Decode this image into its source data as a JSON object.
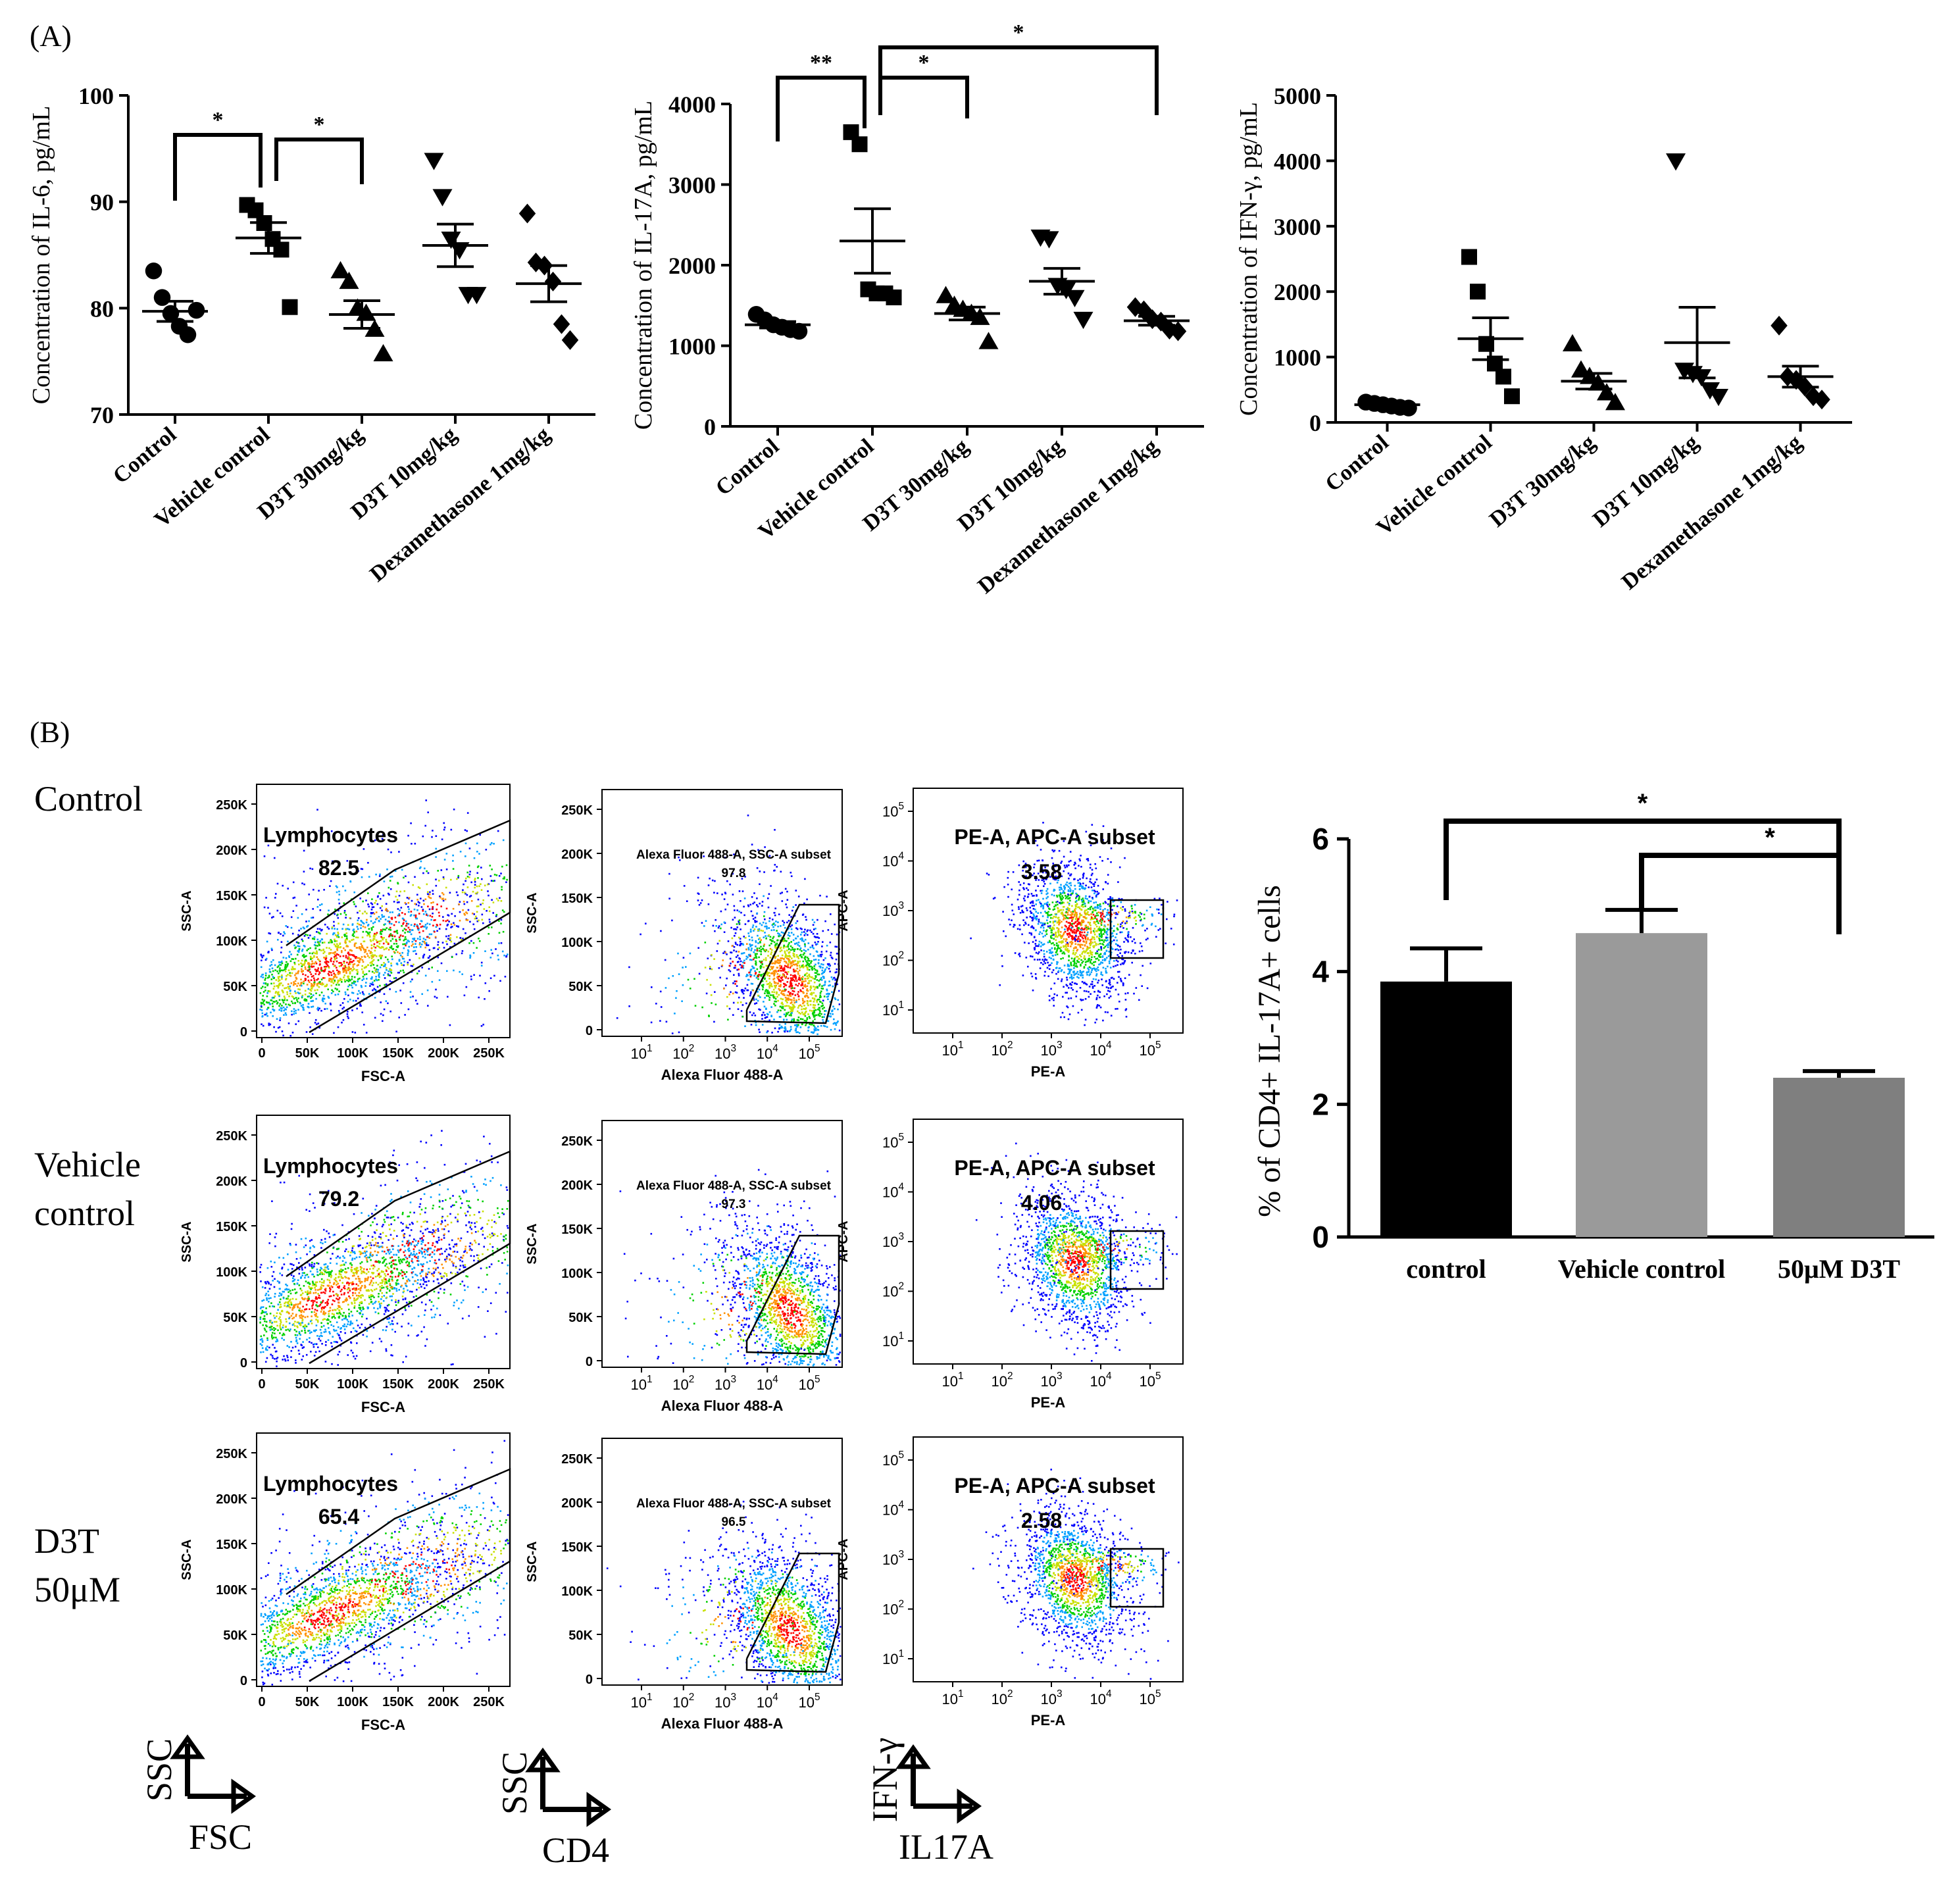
{
  "labels": {
    "panel_a": "(A)",
    "panel_b": "(B)",
    "row_labels": [
      [
        "Control"
      ],
      [
        "Vehicle",
        "control"
      ],
      [
        "D3T",
        "50μM"
      ]
    ],
    "legend": [
      {
        "y": "SSC",
        "x": "FSC"
      },
      {
        "y": "SSC",
        "x": "CD4"
      },
      {
        "y": "IFN-γ",
        "x": "IL17A"
      }
    ]
  },
  "flow": {
    "row_gate_values": [
      {
        "lymph": "82.5",
        "subset": "97.8",
        "pe": "3.58"
      },
      {
        "lymph": "79.2",
        "subset": "97.3",
        "pe": "4.06"
      },
      {
        "lymph": "65.4",
        "subset": "96.5",
        "pe": "2.58"
      }
    ],
    "fsc": {
      "gate_name": "Lymphocytes",
      "xlabel": "FSC-A",
      "ylabel": "SSC-A",
      "xticks": [
        "0",
        "50K",
        "100K",
        "150K",
        "200K",
        "250K"
      ],
      "yticks": [
        "0",
        "50K",
        "100K",
        "150K",
        "200K",
        "250K"
      ]
    },
    "cd4": {
      "gate_name": "Alexa Fluor 488-A, SSC-A subset",
      "xlabel": "Alexa Fluor 488-A",
      "ylabel": "SSC-A",
      "xticks": [
        {
          "b": "10",
          "e": "1"
        },
        {
          "b": "10",
          "e": "2"
        },
        {
          "b": "10",
          "e": "3"
        },
        {
          "b": "10",
          "e": "4"
        },
        {
          "b": "10",
          "e": "5"
        }
      ],
      "yticks": [
        "0",
        "50K",
        "100K",
        "150K",
        "200K",
        "250K"
      ]
    },
    "pe": {
      "gate_name": "PE-A, APC-A subset",
      "xlabel": "PE-A",
      "ylabel": "APC-A",
      "xticks": [
        {
          "b": "10",
          "e": "1"
        },
        {
          "b": "10",
          "e": "2"
        },
        {
          "b": "10",
          "e": "3"
        },
        {
          "b": "10",
          "e": "4"
        },
        {
          "b": "10",
          "e": "5"
        }
      ],
      "yticks": [
        {
          "b": "10",
          "e": "1"
        },
        {
          "b": "10",
          "e": "2"
        },
        {
          "b": "10",
          "e": "3"
        },
        {
          "b": "10",
          "e": "4"
        },
        {
          "b": "10",
          "e": "5"
        }
      ]
    }
  },
  "chart_data": [
    {
      "type": "scatter",
      "ylabel": "Concentration of IL-6, pg/mL",
      "categories": [
        "Control",
        "Vehicle control",
        "D3T 30mg/kg",
        "D3T 10mg/kg",
        "Dexamethasone 1mg/kg"
      ],
      "markers": [
        "circle",
        "square",
        "triangle-up",
        "triangle-down",
        "diamond"
      ],
      "ylim": [
        70,
        100
      ],
      "yticks": [
        70,
        80,
        90,
        100
      ],
      "points": [
        [
          83.5,
          81,
          79.5,
          78.3,
          77.5,
          79.8
        ],
        [
          89.7,
          89.2,
          88,
          86.5,
          85.5,
          80.1
        ],
        [
          83.5,
          82.5,
          80,
          79.5,
          78,
          75.7
        ],
        [
          93.9,
          90.5,
          86.5,
          85.5,
          81.3,
          81.3
        ],
        [
          88.9,
          84.3,
          84,
          82.5,
          78.5,
          77
        ]
      ],
      "mean": [
        79.7,
        86.6,
        79.4,
        85.9,
        82.3
      ],
      "sem": [
        0.95,
        1.45,
        1.3,
        2.0,
        1.7
      ],
      "significance": [
        {
          "from": 0,
          "to": 1,
          "label": "*"
        },
        {
          "from": 1,
          "to": 2,
          "label": "*"
        }
      ]
    },
    {
      "type": "scatter",
      "ylabel": "Concentration of IL-17A, pg/mL",
      "categories": [
        "Control",
        "Vehicle control",
        "D3T 30mg/kg",
        "D3T 10mg/kg",
        "Dexamethasone 1mg/kg"
      ],
      "markers": [
        "circle",
        "square",
        "triangle-up",
        "triangle-down",
        "diamond"
      ],
      "ylim": [
        0,
        4000
      ],
      "yticks": [
        0,
        1000,
        2000,
        3000,
        4000
      ],
      "points": [
        [
          1390,
          1320,
          1260,
          1230,
          1200,
          1180
        ],
        [
          3650,
          3500,
          1700,
          1650,
          1650,
          1600
        ],
        [
          1620,
          1500,
          1450,
          1400,
          1350,
          1050
        ],
        [
          2350,
          2330,
          1750,
          1700,
          1600,
          1330
        ],
        [
          1480,
          1440,
          1330,
          1300,
          1200,
          1180
        ]
      ],
      "mean": [
        1260,
        2300,
        1400,
        1800,
        1310
      ],
      "sem": [
        40,
        400,
        80,
        160,
        55
      ],
      "significance": [
        {
          "from": 0,
          "to": 1,
          "label": "**"
        },
        {
          "from": 1,
          "to": 2,
          "label": "*"
        },
        {
          "from": 1,
          "to": 4,
          "label": "*"
        }
      ]
    },
    {
      "type": "scatter",
      "ylabel": "Concentration of IFN-γ, pg/mL",
      "categories": [
        "Control",
        "Vehicle control",
        "D3T 30mg/kg",
        "D3T 10mg/kg",
        "Dexamethasone 1mg/kg"
      ],
      "markers": [
        "circle",
        "square",
        "triangle-up",
        "triangle-down",
        "diamond"
      ],
      "ylim": [
        0,
        5000
      ],
      "yticks": [
        0,
        1000,
        2000,
        3000,
        4000,
        5000
      ],
      "points": [
        [
          310,
          290,
          270,
          250,
          230,
          220
        ],
        [
          2530,
          2000,
          1200,
          900,
          700,
          400
        ],
        [
          1200,
          800,
          700,
          600,
          450,
          300
        ],
        [
          4000,
          800,
          750,
          700,
          500,
          400
        ],
        [
          1480,
          700,
          650,
          550,
          400,
          350
        ]
      ],
      "mean": [
        270,
        1280,
        630,
        1220,
        700
      ],
      "sem": [
        25,
        320,
        120,
        540,
        160
      ],
      "significance": []
    },
    {
      "type": "bar",
      "ylabel": "% of CD4+ IL-17A+ cells",
      "categories": [
        "control",
        "Vehicle control",
        "50μM D3T"
      ],
      "values": [
        3.85,
        4.58,
        2.4
      ],
      "errors": [
        0.5,
        0.35,
        0.1
      ],
      "colors": [
        "#000000",
        "#9a9a9a",
        "#7f7f7f"
      ],
      "ylim": [
        0,
        6
      ],
      "yticks": [
        0,
        2,
        4,
        6
      ],
      "significance": [
        {
          "from": 0,
          "to": 2,
          "label": "*"
        },
        {
          "from": 1,
          "to": 2,
          "label": "*"
        }
      ]
    }
  ]
}
